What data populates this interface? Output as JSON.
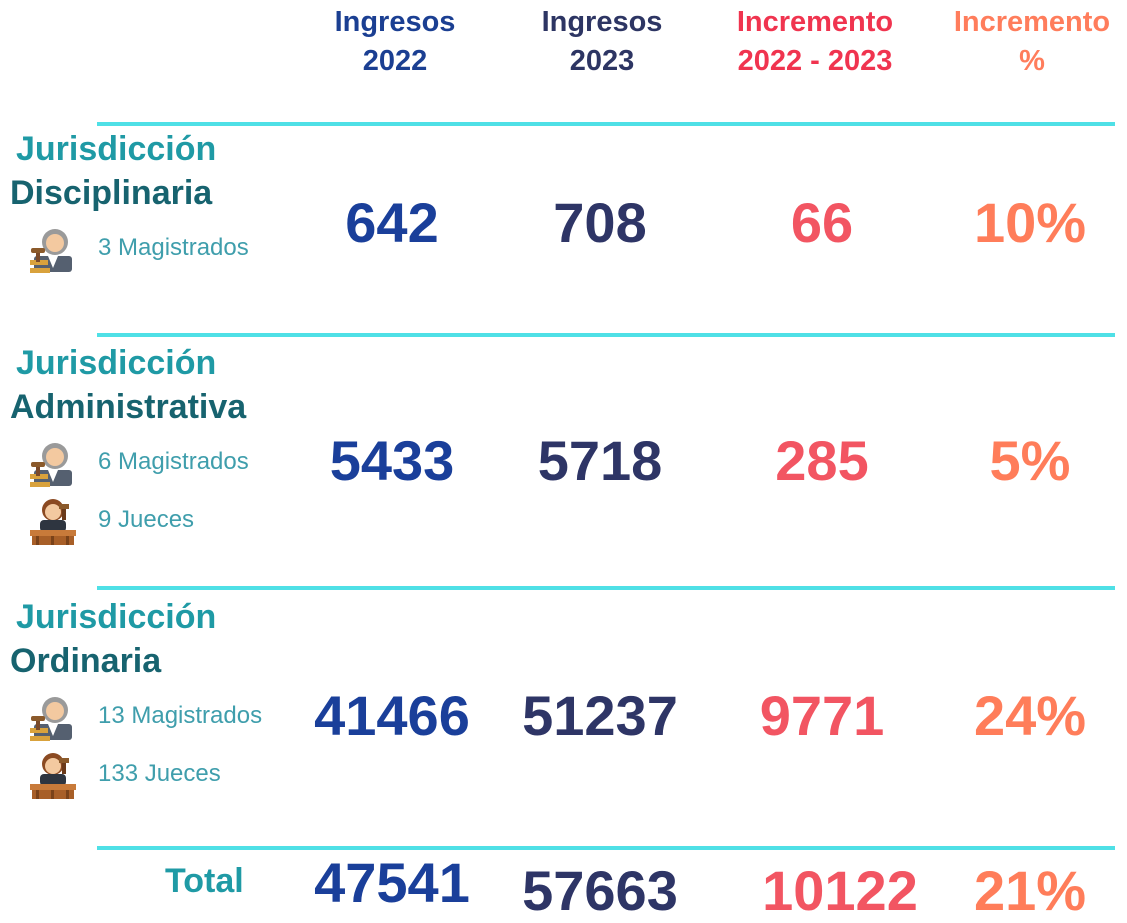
{
  "columns": [
    {
      "line1": "Ingresos",
      "line2": "2022"
    },
    {
      "line1": "Ingresos",
      "line2": "2023"
    },
    {
      "line1": "Incremento",
      "line2": "2022 - 2023"
    },
    {
      "line1": "Incremento",
      "line2": "%"
    }
  ],
  "rows": [
    {
      "title": "Jurisdicción",
      "subtitle": "Disciplinaria",
      "staff": [
        "3 Magistrados"
      ],
      "values": [
        "642",
        "708",
        "66",
        "10%"
      ]
    },
    {
      "title": "Jurisdicción",
      "subtitle": "Administrativa",
      "staff": [
        "6 Magistrados",
        "9 Jueces"
      ],
      "values": [
        "5433",
        "5718",
        "285",
        "5%"
      ]
    },
    {
      "title": "Jurisdicción",
      "subtitle": "Ordinaria",
      "staff": [
        "13 Magistrados",
        "133 Jueces"
      ],
      "values": [
        "41466",
        "51237",
        "9771",
        "24%"
      ]
    }
  ],
  "total": {
    "label": "Total",
    "values": [
      "47541",
      "57663",
      "10122",
      "21%"
    ]
  }
}
